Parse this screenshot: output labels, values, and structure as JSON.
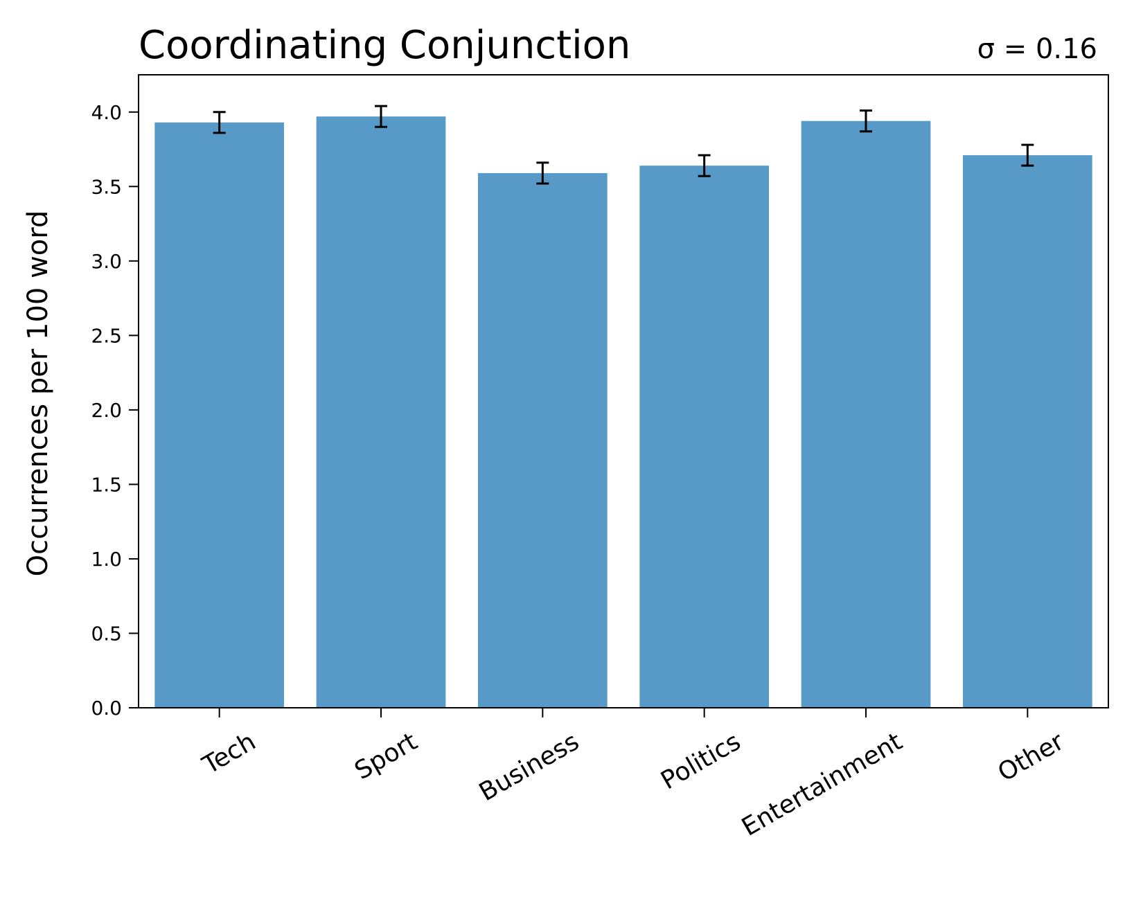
{
  "chart_data": {
    "type": "bar",
    "title": "Coordinating Conjunction",
    "annotation": "σ = 0.16",
    "xlabel": "",
    "ylabel": "Occurrences per 100 word",
    "categories": [
      "Tech",
      "Sport",
      "Business",
      "Politics",
      "Entertainment",
      "Other"
    ],
    "values": [
      3.93,
      3.97,
      3.59,
      3.64,
      3.94,
      3.71
    ],
    "error": [
      0.07,
      0.07,
      0.07,
      0.07,
      0.07,
      0.07
    ],
    "ylim": [
      0,
      4.25
    ],
    "yticks": [
      "0.0",
      "0.5",
      "1.0",
      "1.5",
      "2.0",
      "2.5",
      "3.0",
      "3.5",
      "4.0"
    ],
    "bar_color": "#5799c7",
    "grid": false,
    "legend": "none"
  }
}
